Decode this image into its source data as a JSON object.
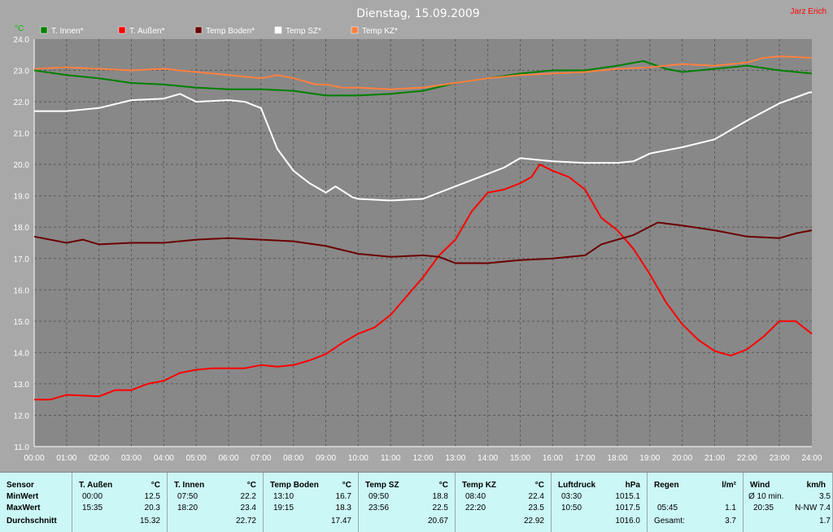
{
  "title": "Dienstag, 15.09.2009",
  "author": "Jarz Erich",
  "y_unit": "°C",
  "colors": {
    "plot_bg": "#888888",
    "outer_bg": "#a8a8a8",
    "grid": "#5a5a5a",
    "panel_bg": "#ccf7f7"
  },
  "chart_data": {
    "type": "line",
    "title": "Dienstag, 15.09.2009",
    "ylabel": "°C",
    "xlim": [
      0,
      24
    ],
    "ylim": [
      11.0,
      24.0
    ],
    "grid": true,
    "legend_position": "top-left",
    "x_ticks": [
      "00:00",
      "01:00",
      "02:00",
      "03:00",
      "04:00",
      "05:00",
      "06:00",
      "07:00",
      "08:00",
      "09:00",
      "10:00",
      "11:00",
      "12:00",
      "13:00",
      "14:00",
      "15:00",
      "16:00",
      "17:00",
      "18:00",
      "19:00",
      "20:00",
      "21:00",
      "22:00",
      "23:00",
      "24:00"
    ],
    "y_ticks": [
      "11.0",
      "12.0",
      "13.0",
      "14.0",
      "15.0",
      "16.0",
      "17.0",
      "18.0",
      "19.0",
      "20.0",
      "21.0",
      "22.0",
      "23.0",
      "24.0"
    ],
    "series": [
      {
        "name": "T. Innen*",
        "color": "#008000",
        "points": [
          [
            0,
            23.0
          ],
          [
            1,
            22.85
          ],
          [
            2,
            22.75
          ],
          [
            3,
            22.6
          ],
          [
            4,
            22.55
          ],
          [
            5,
            22.45
          ],
          [
            6,
            22.4
          ],
          [
            7,
            22.4
          ],
          [
            8,
            22.35
          ],
          [
            9,
            22.2
          ],
          [
            10,
            22.2
          ],
          [
            11,
            22.25
          ],
          [
            12,
            22.35
          ],
          [
            13,
            22.6
          ],
          [
            14,
            22.75
          ],
          [
            15,
            22.9
          ],
          [
            16,
            23.0
          ],
          [
            17,
            23.0
          ],
          [
            18,
            23.15
          ],
          [
            18.8,
            23.3
          ],
          [
            19.5,
            23.05
          ],
          [
            20,
            22.95
          ],
          [
            21,
            23.05
          ],
          [
            22,
            23.15
          ],
          [
            23,
            23.0
          ],
          [
            24,
            22.9
          ]
        ]
      },
      {
        "name": "T. Außen*",
        "color": "#ff0000",
        "points": [
          [
            0,
            12.5
          ],
          [
            0.5,
            12.5
          ],
          [
            1,
            12.65
          ],
          [
            2,
            12.6
          ],
          [
            2.5,
            12.8
          ],
          [
            3,
            12.8
          ],
          [
            3.5,
            13.0
          ],
          [
            4,
            13.1
          ],
          [
            4.5,
            13.35
          ],
          [
            5,
            13.45
          ],
          [
            5.5,
            13.5
          ],
          [
            6,
            13.5
          ],
          [
            6.5,
            13.5
          ],
          [
            7,
            13.6
          ],
          [
            7.5,
            13.55
          ],
          [
            8,
            13.6
          ],
          [
            8.5,
            13.75
          ],
          [
            9,
            13.95
          ],
          [
            9.5,
            14.3
          ],
          [
            10,
            14.6
          ],
          [
            10.5,
            14.8
          ],
          [
            11,
            15.2
          ],
          [
            11.5,
            15.8
          ],
          [
            12,
            16.4
          ],
          [
            12.5,
            17.1
          ],
          [
            13,
            17.6
          ],
          [
            13.5,
            18.5
          ],
          [
            14,
            19.1
          ],
          [
            14.5,
            19.2
          ],
          [
            15,
            19.4
          ],
          [
            15.35,
            19.6
          ],
          [
            15.6,
            20.0
          ],
          [
            16,
            19.8
          ],
          [
            16.5,
            19.6
          ],
          [
            17,
            19.2
          ],
          [
            17.5,
            18.3
          ],
          [
            18,
            17.9
          ],
          [
            18.5,
            17.3
          ],
          [
            19,
            16.5
          ],
          [
            19.5,
            15.6
          ],
          [
            20,
            14.9
          ],
          [
            20.5,
            14.4
          ],
          [
            21,
            14.05
          ],
          [
            21.5,
            13.9
          ],
          [
            22,
            14.1
          ],
          [
            22.5,
            14.5
          ],
          [
            23,
            15.0
          ],
          [
            23.5,
            15.0
          ],
          [
            24,
            14.6
          ]
        ]
      },
      {
        "name": "Temp Boden*",
        "color": "#6b0000",
        "points": [
          [
            0,
            17.7
          ],
          [
            1,
            17.5
          ],
          [
            1.5,
            17.6
          ],
          [
            2,
            17.45
          ],
          [
            3,
            17.5
          ],
          [
            4,
            17.5
          ],
          [
            5,
            17.6
          ],
          [
            6,
            17.65
          ],
          [
            7,
            17.6
          ],
          [
            8,
            17.55
          ],
          [
            9,
            17.4
          ],
          [
            10,
            17.15
          ],
          [
            11,
            17.05
          ],
          [
            12,
            17.1
          ],
          [
            12.5,
            17.05
          ],
          [
            13,
            16.85
          ],
          [
            14,
            16.85
          ],
          [
            15,
            16.95
          ],
          [
            16,
            17.0
          ],
          [
            17,
            17.1
          ],
          [
            17.5,
            17.45
          ],
          [
            18,
            17.6
          ],
          [
            18.5,
            17.75
          ],
          [
            19.25,
            18.15
          ],
          [
            20,
            18.05
          ],
          [
            21,
            17.9
          ],
          [
            22,
            17.7
          ],
          [
            23,
            17.65
          ],
          [
            23.5,
            17.8
          ],
          [
            24,
            17.9
          ]
        ]
      },
      {
        "name": "Temp SZ*",
        "color": "#ffffff",
        "points": [
          [
            0,
            21.7
          ],
          [
            1,
            21.7
          ],
          [
            2,
            21.8
          ],
          [
            3,
            22.05
          ],
          [
            4,
            22.1
          ],
          [
            4.5,
            22.25
          ],
          [
            5,
            22.0
          ],
          [
            6,
            22.05
          ],
          [
            6.5,
            22.0
          ],
          [
            7,
            21.8
          ],
          [
            7.5,
            20.5
          ],
          [
            8,
            19.8
          ],
          [
            8.5,
            19.4
          ],
          [
            9,
            19.1
          ],
          [
            9.3,
            19.3
          ],
          [
            9.83,
            18.95
          ],
          [
            10,
            18.9
          ],
          [
            11,
            18.85
          ],
          [
            12,
            18.9
          ],
          [
            13,
            19.3
          ],
          [
            13.5,
            19.5
          ],
          [
            14,
            19.7
          ],
          [
            14.5,
            19.9
          ],
          [
            15,
            20.2
          ],
          [
            16,
            20.1
          ],
          [
            17,
            20.05
          ],
          [
            18,
            20.05
          ],
          [
            18.5,
            20.1
          ],
          [
            19,
            20.35
          ],
          [
            20,
            20.55
          ],
          [
            21,
            20.8
          ],
          [
            21.5,
            21.1
          ],
          [
            22,
            21.4
          ],
          [
            23,
            21.95
          ],
          [
            23.93,
            22.3
          ],
          [
            24,
            22.3
          ]
        ]
      },
      {
        "name": "Temp KZ*",
        "color": "#ff8040",
        "points": [
          [
            0,
            23.05
          ],
          [
            1,
            23.1
          ],
          [
            2,
            23.05
          ],
          [
            3,
            23.0
          ],
          [
            4,
            23.05
          ],
          [
            5,
            22.95
          ],
          [
            6,
            22.85
          ],
          [
            7,
            22.75
          ],
          [
            7.5,
            22.85
          ],
          [
            8,
            22.75
          ],
          [
            8.7,
            22.55
          ],
          [
            9,
            22.55
          ],
          [
            9.5,
            22.45
          ],
          [
            10,
            22.45
          ],
          [
            11,
            22.4
          ],
          [
            12,
            22.45
          ],
          [
            13,
            22.6
          ],
          [
            14,
            22.75
          ],
          [
            15,
            22.85
          ],
          [
            16,
            22.9
          ],
          [
            17,
            22.95
          ],
          [
            18,
            23.05
          ],
          [
            19,
            23.1
          ],
          [
            20,
            23.2
          ],
          [
            21,
            23.15
          ],
          [
            22,
            23.25
          ],
          [
            22.5,
            23.4
          ],
          [
            23,
            23.45
          ],
          [
            24,
            23.4
          ]
        ]
      }
    ]
  },
  "table": {
    "headers": [
      {
        "name": "Sensor",
        "unit": ""
      },
      {
        "name": "T. Außen",
        "unit": "°C"
      },
      {
        "name": "T. Innen",
        "unit": "°C"
      },
      {
        "name": "Temp Boden",
        "unit": "°C"
      },
      {
        "name": "Temp SZ",
        "unit": "°C"
      },
      {
        "name": "Temp KZ",
        "unit": "°C"
      },
      {
        "name": "Luftdruck",
        "unit": "hPa"
      },
      {
        "name": "Regen",
        "unit": "l/m²"
      },
      {
        "name": "Wind",
        "unit": "km/h"
      }
    ],
    "row_labels": [
      "MinWert",
      "MaxWert",
      "Durchschnitt"
    ],
    "cols": [
      {
        "min_time": "00:00",
        "min": "12.5",
        "max_time": "15:35",
        "max": "20.3",
        "avg": "15.32"
      },
      {
        "min_time": "07:50",
        "min": "22.2",
        "max_time": "18:20",
        "max": "23.4",
        "avg": "22.72"
      },
      {
        "min_time": "13:10",
        "min": "16.7",
        "max_time": "19:15",
        "max": "18.3",
        "avg": "17.47"
      },
      {
        "min_time": "09:50",
        "min": "18.8",
        "max_time": "23:56",
        "max": "22.5",
        "avg": "20.67"
      },
      {
        "min_time": "08:40",
        "min": "22.4",
        "max_time": "22:20",
        "max": "23.5",
        "avg": "22.92"
      },
      {
        "min_time": "03:30",
        "min": "1015.1",
        "max_time": "10:50",
        "max": "1017.5",
        "avg": "1016.0"
      }
    ],
    "rain": {
      "row2_label": "05:45",
      "row2_value": "1.1",
      "row3_label": "Gesamt:",
      "row3_value": "3.7"
    },
    "wind": {
      "row1_label": "Ø 10 min.",
      "row1_value": "3.5",
      "row2_time": "20:35",
      "row2_value": "N-NW 7.4",
      "row3_value": "1.7"
    }
  }
}
